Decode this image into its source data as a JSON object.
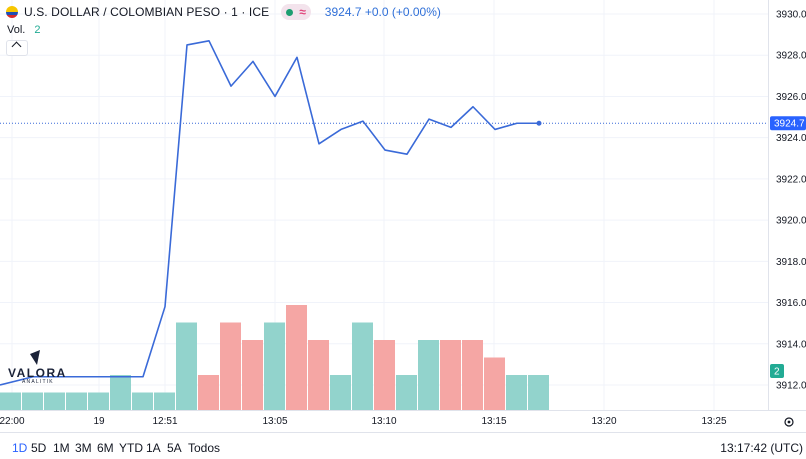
{
  "header": {
    "symbol": "U.S. DOLLAR / COLOMBIAN PESO · 1 · ICE",
    "status_symbol": "≈",
    "price_readout": "3924.7 +0.0 (+0.00%)"
  },
  "volume_label": {
    "label": "Vol.",
    "value": "2"
  },
  "logo": {
    "name": "VALORA",
    "sub": "ANALITIK"
  },
  "chart_data": {
    "type": "line",
    "title": "",
    "xlabel": "",
    "ylabel": "",
    "ylim": [
      3911.0,
      3930.4
    ],
    "y_ticks": [
      3912.0,
      3914.0,
      3916.0,
      3918.0,
      3920.0,
      3922.0,
      3924.0,
      3926.0,
      3928.0,
      3930.0
    ],
    "x_ticks": [
      "22:00",
      "19",
      "12:51",
      "13:05",
      "13:10",
      "13:15",
      "13:20",
      "13:25"
    ],
    "last_price": 3924.7,
    "last_price_label": "3924.7",
    "grid": true,
    "series": [
      {
        "kind": "price",
        "color": "#3a6ad8",
        "values": [
          3912.0,
          3912.4,
          3912.4,
          3912.4,
          3912.4,
          3912.4,
          3912.4,
          3915.8,
          3928.5,
          3928.7,
          3926.5,
          3927.7,
          3926.0,
          3927.9,
          3923.7,
          3924.4,
          3924.8,
          3923.4,
          3923.2,
          3924.9,
          3924.5,
          3925.5,
          3924.4,
          3924.7,
          3924.7
        ]
      },
      {
        "kind": "volume",
        "values": [
          1,
          1,
          1,
          1,
          1,
          2,
          1,
          1,
          5,
          2,
          5,
          4,
          5,
          6,
          4,
          2,
          5,
          4,
          2,
          4,
          4,
          4,
          3,
          2,
          2
        ],
        "direction": [
          "up",
          "up",
          "up",
          "up",
          "up",
          "up",
          "up",
          "up",
          "up",
          "down",
          "down",
          "down",
          "up",
          "down",
          "down",
          "up",
          "up",
          "down",
          "up",
          "up",
          "down",
          "down",
          "down",
          "up",
          "up"
        ]
      }
    ],
    "volume_last_label": "2"
  },
  "colors": {
    "up": "#92d3cc",
    "down": "#f5a6a4",
    "price_badge": "#2962ff",
    "vol_badge": "#22ab94"
  },
  "bottom": {
    "ranges": [
      "1D",
      "5D",
      "1M",
      "3M",
      "6M",
      "YTD",
      "1A",
      "5A",
      "Todos"
    ],
    "clock": "13:17:42 (UTC)"
  }
}
